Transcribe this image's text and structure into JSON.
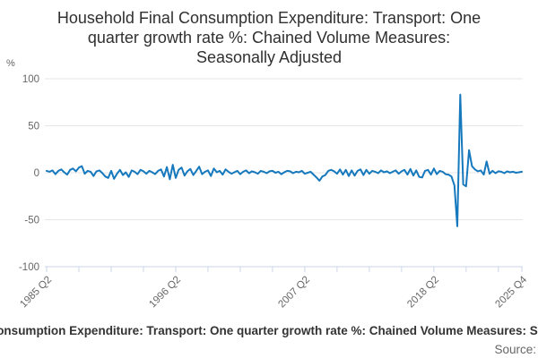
{
  "title": {
    "lines": [
      "Household Final Consumption Expenditure: Transport: One",
      "quarter growth rate %: Chained Volume Measures:",
      "Seasonally Adjusted"
    ],
    "full": "Household Final Consumption Expenditure: Transport: One quarter growth rate %: Chained Volume Measures: Seasonally Adjusted"
  },
  "y_axis_unit": "%",
  "footer": {
    "caption": "Household Final Consumption Expenditure: Transport: One quarter growth rate %: Chained Volume Measures: Seasonally Adjusted",
    "source_label": "Source:"
  },
  "colors": {
    "line": "#1679bd",
    "grid": "#e6e6e6",
    "axis": "#ccd6eb",
    "tick": "#ccd6eb",
    "tick_label": "#666666",
    "title_text": "#303030",
    "background": "#ffffff"
  },
  "chart_data": {
    "type": "line",
    "title": "Household Final Consumption Expenditure: Transport: One quarter growth rate %: Chained Volume Measures: Seasonally Adjusted",
    "xlabel": "",
    "ylabel": "%",
    "ylim": [
      -100,
      100
    ],
    "yticks": [
      100,
      50,
      0,
      -50,
      -100
    ],
    "grid": "horizontal",
    "legend": "none",
    "x_frequency": "quarterly",
    "x_start": "1985 Q2",
    "x_end": "2025 Q4",
    "x_minor_tick_step_quarters": 11,
    "xticks": [
      {
        "label": "1985 Q2",
        "q": 0
      },
      {
        "label": "1996 Q2",
        "q": 44
      },
      {
        "label": "2007 Q2",
        "q": 88
      },
      {
        "label": "2018 Q2",
        "q": 132
      },
      {
        "label": "2025 Q4",
        "q": 162
      }
    ],
    "values": [
      2,
      1,
      2.5,
      -1.5,
      2,
      3.5,
      0.5,
      -2,
      3,
      4.5,
      1.5,
      5.5,
      7,
      -1,
      2,
      1,
      -3.5,
      1.5,
      2.5,
      -0.5,
      -4,
      -5.5,
      2,
      -6.5,
      -1,
      3,
      -2.5,
      0.5,
      -4.5,
      2.5,
      1,
      -1.5,
      3,
      1.5,
      -1,
      2,
      0.5,
      -1.5,
      2,
      3.5,
      -4,
      6,
      -7,
      8.5,
      -5.5,
      3,
      5.5,
      -3,
      1.5,
      4,
      -2.5,
      2,
      6.5,
      -1.5,
      1,
      2.5,
      -3.5,
      4.5,
      0.5,
      2,
      -2,
      3.5,
      1,
      -1,
      0.5,
      2,
      -1.5,
      1,
      2.5,
      -0.5,
      1.5,
      0.5,
      -1,
      2,
      1,
      -0.5,
      1.5,
      2,
      0,
      1,
      -1.5,
      0.5,
      2,
      1.5,
      -0.5,
      1,
      0.5,
      2,
      -1,
      0,
      1,
      -2,
      -5,
      -8.5,
      -4,
      -2.5,
      2,
      3,
      1.5,
      -1,
      3.5,
      -2,
      3,
      -3.5,
      2.5,
      -3,
      2,
      3.5,
      -2.5,
      3,
      -1,
      2,
      1,
      -0.5,
      2.5,
      0.5,
      1.5,
      -0.5,
      1,
      2.5,
      -1,
      1.5,
      3,
      -2,
      4,
      -3,
      2.5,
      -4.5,
      -5,
      2,
      3,
      -2,
      4.5,
      -1.5,
      2,
      1,
      -1.5,
      -2,
      -4,
      -13.5,
      -57,
      83,
      -12.5,
      -14.5,
      24,
      7,
      3.5,
      1.5,
      2.5,
      -2,
      12,
      -1,
      2,
      -0.5,
      1.5,
      1,
      -0.5,
      1.5,
      0.5,
      1,
      0,
      0.5,
      1
    ]
  }
}
